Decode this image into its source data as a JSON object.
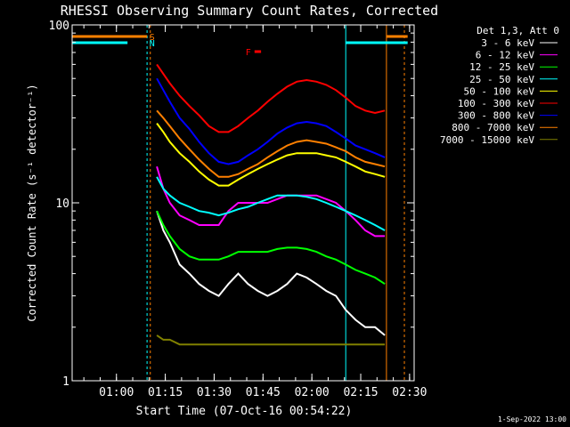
{
  "chart_data": {
    "type": "line",
    "title": "RHESSI Observing Summary Count Rates, Corrected",
    "xlabel": "Start Time (07-Oct-16 00:54:22)",
    "ylabel": "Corrected Count Rate (s⁻¹ detector⁻¹)",
    "y_scale": "log",
    "ylim": [
      1,
      100
    ],
    "xlim_minutes": [
      -8,
      97
    ],
    "x_ticks": [
      {
        "minute": 5.6,
        "label": "01:00"
      },
      {
        "minute": 20.6,
        "label": "01:15"
      },
      {
        "minute": 35.6,
        "label": "01:30"
      },
      {
        "minute": 50.6,
        "label": "01:45"
      },
      {
        "minute": 65.6,
        "label": "02:00"
      },
      {
        "minute": 80.6,
        "label": "02:15"
      },
      {
        "minute": 95.6,
        "label": "02:30"
      }
    ],
    "y_ticks": [
      {
        "value": 1,
        "label": "1"
      },
      {
        "value": 10,
        "label": "10"
      },
      {
        "value": 100,
        "label": "100"
      }
    ],
    "legend_header": "Det 1,3, Att 0",
    "date_stamp": "1-Sep-2022 13:00",
    "flags": [
      {
        "label": "S",
        "color": "#ff8000",
        "segments": [
          [
            -8,
            15
          ],
          [
            88.5,
            95
          ]
        ]
      },
      {
        "label": "N",
        "color": "#00ffff",
        "segments": [
          [
            -8,
            9
          ],
          [
            76,
            95
          ]
        ]
      },
      {
        "label": "F",
        "color": "#ff0000",
        "segments": [
          [
            48,
            50
          ]
        ]
      }
    ],
    "vertical_markers": [
      {
        "minute": -8,
        "color": "#00ffff",
        "style": "solid"
      },
      {
        "minute": 15,
        "color": "#00ffff",
        "style": "dashed"
      },
      {
        "minute": 16,
        "color": "#ff8000",
        "style": "dashed"
      },
      {
        "minute": 76,
        "color": "#00ffff",
        "style": "solid"
      },
      {
        "minute": 88.5,
        "color": "#ff8000",
        "style": "solid"
      },
      {
        "minute": 94,
        "color": "#ff8000",
        "style": "dashed"
      }
    ],
    "x": [
      18,
      20,
      22,
      25,
      28,
      31,
      34,
      37,
      40,
      43,
      46,
      49,
      52,
      55,
      58,
      61,
      64,
      67,
      70,
      73,
      76,
      79,
      82,
      85,
      88
    ],
    "series": [
      {
        "name": "3 - 6 keV",
        "color": "#ffffff",
        "values": [
          9,
          7,
          6,
          4.5,
          4,
          3.5,
          3.2,
          3,
          3.5,
          4,
          3.5,
          3.2,
          3,
          3.2,
          3.5,
          4,
          3.8,
          3.5,
          3.2,
          3,
          2.5,
          2.2,
          2,
          2,
          1.8
        ]
      },
      {
        "name": "6 - 12 keV",
        "color": "#ff00ff",
        "values": [
          16,
          12,
          10,
          8.5,
          8,
          7.5,
          7.5,
          7.5,
          9,
          10,
          10,
          10,
          10,
          10.5,
          11,
          11,
          11,
          11,
          10.5,
          10,
          9,
          8,
          7,
          6.5,
          6.5
        ]
      },
      {
        "name": "12 - 25 keV",
        "color": "#00ff00",
        "values": [
          9,
          7.5,
          6.5,
          5.5,
          5,
          4.8,
          4.8,
          4.8,
          5,
          5.3,
          5.3,
          5.3,
          5.3,
          5.5,
          5.6,
          5.6,
          5.5,
          5.3,
          5,
          4.8,
          4.5,
          4.2,
          4,
          3.8,
          3.5
        ]
      },
      {
        "name": "25 - 50 keV",
        "color": "#00ffff",
        "values": [
          14,
          12,
          11,
          10,
          9.5,
          9,
          8.8,
          8.5,
          8.8,
          9.2,
          9.5,
          10,
          10.5,
          11,
          11,
          11,
          10.8,
          10.5,
          10,
          9.5,
          9,
          8.5,
          8,
          7.5,
          7
        ]
      },
      {
        "name": "50 - 100 keV",
        "color": "#ffff00",
        "values": [
          28,
          25,
          22,
          19,
          17,
          15,
          13.5,
          12.5,
          12.5,
          13.5,
          14.5,
          15.5,
          16.5,
          17.5,
          18.5,
          19,
          19,
          19,
          18.5,
          18,
          17,
          16,
          15,
          14.5,
          14
        ]
      },
      {
        "name": "100 - 300 keV",
        "color": "#ff0000",
        "values": [
          60,
          53,
          47,
          40,
          35,
          31,
          27,
          25,
          25,
          27,
          30,
          33,
          37,
          41,
          45,
          48,
          49,
          48,
          46,
          43,
          39,
          35,
          33,
          32,
          33
        ]
      },
      {
        "name": "300 - 800 keV",
        "color": "#0000ff",
        "values": [
          50,
          43,
          37,
          30,
          26,
          22,
          19,
          17,
          16.5,
          17,
          18.5,
          20,
          22,
          24.5,
          26.5,
          28,
          28.5,
          28,
          27,
          25,
          23,
          21,
          20,
          19,
          18
        ]
      },
      {
        "name": "800 - 7000 keV",
        "color": "#ff8000",
        "values": [
          33,
          30,
          27,
          23,
          20,
          17.5,
          15.5,
          14,
          14,
          14.5,
          15.5,
          16.5,
          18,
          19.5,
          21,
          22,
          22.5,
          22,
          21.5,
          20.5,
          19.5,
          18,
          17,
          16.5,
          16
        ]
      },
      {
        "name": "7000 - 15000 keV",
        "color": "#808000",
        "values": [
          1.8,
          1.7,
          1.7,
          1.6,
          1.6,
          1.6,
          1.6,
          1.6,
          1.6,
          1.6,
          1.6,
          1.6,
          1.6,
          1.6,
          1.6,
          1.6,
          1.6,
          1.6,
          1.6,
          1.6,
          1.6,
          1.6,
          1.6,
          1.6,
          1.6
        ]
      }
    ]
  }
}
